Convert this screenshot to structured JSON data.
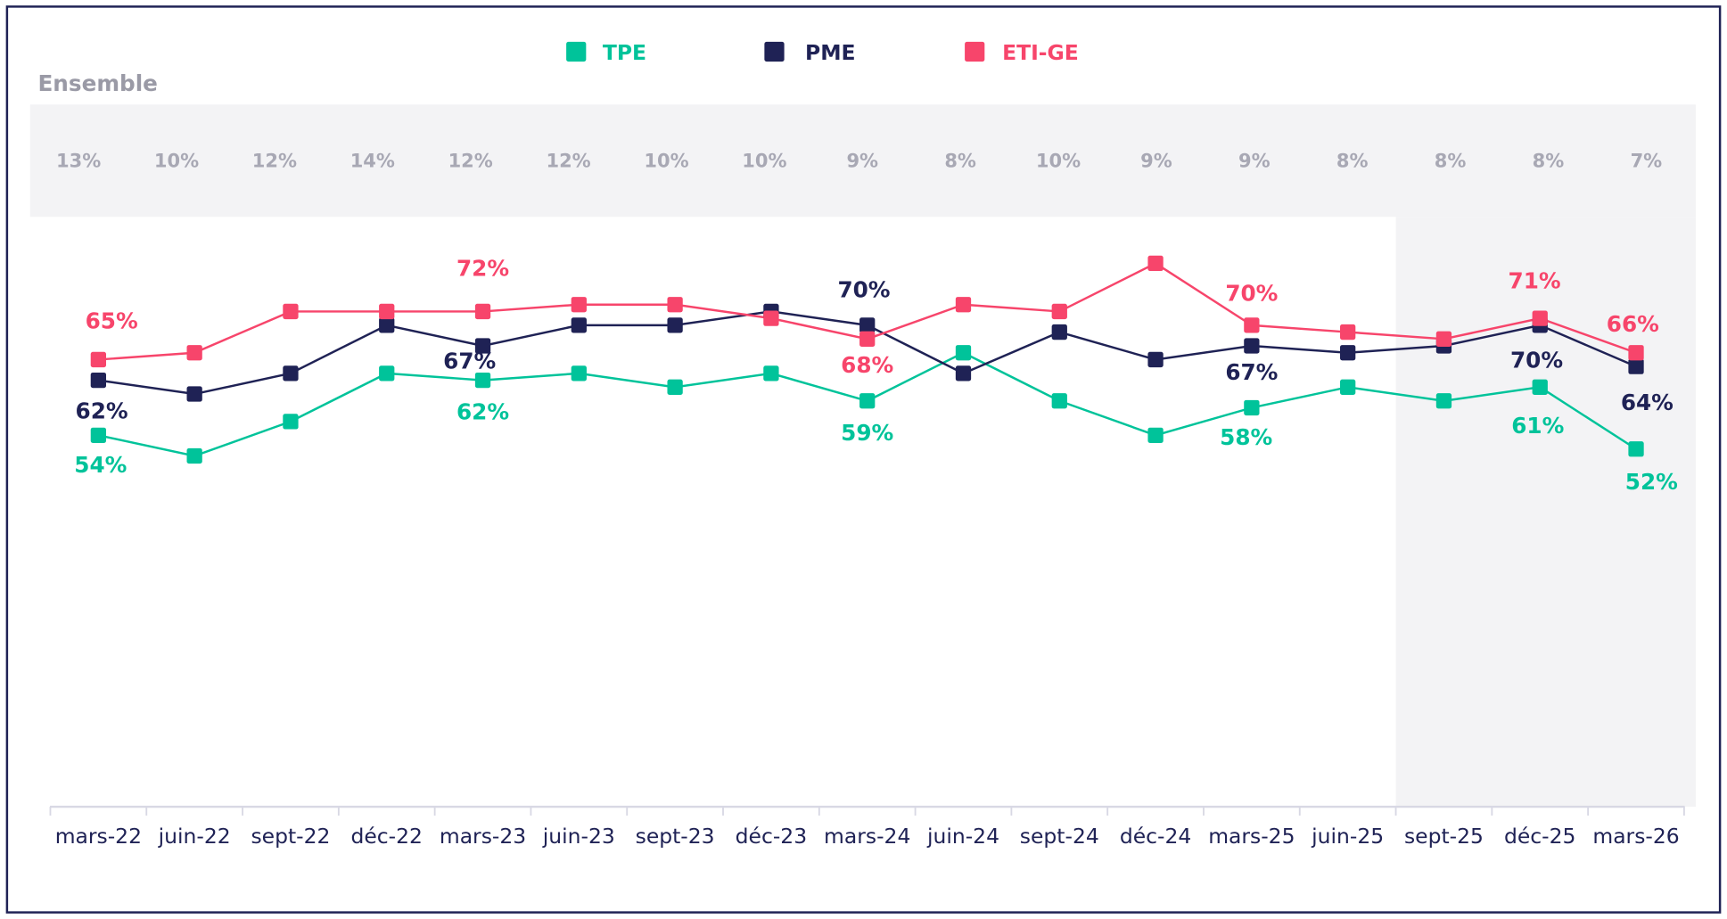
{
  "chart_data": {
    "type": "line",
    "categories": [
      "mars-22",
      "juin-22",
      "sept-22",
      "déc-22",
      "mars-23",
      "juin-23",
      "sept-23",
      "déc-23",
      "mars-24",
      "juin-24",
      "sept-24",
      "déc-24",
      "mars-25",
      "juin-25",
      "sept-25",
      "déc-25",
      "mars-26"
    ],
    "ylim": [
      0,
      100
    ],
    "series": [
      {
        "name": "TPE",
        "color": "#00c39a",
        "values": [
          54,
          51,
          56,
          63,
          62,
          63,
          61,
          63,
          59,
          66,
          59,
          54,
          58,
          61,
          59,
          61,
          52
        ],
        "value_labels": [
          "54%",
          null,
          null,
          null,
          "62%",
          null,
          null,
          null,
          "59%",
          null,
          null,
          null,
          "58%",
          null,
          null,
          "61%",
          "52%"
        ]
      },
      {
        "name": "PME",
        "color": "#1f2255",
        "values": [
          62,
          60,
          63,
          70,
          67,
          70,
          70,
          72,
          70,
          63,
          69,
          65,
          67,
          66,
          67,
          70,
          64
        ],
        "value_labels": [
          "62%",
          null,
          null,
          null,
          "67%",
          null,
          null,
          null,
          "70%",
          null,
          null,
          null,
          "67%",
          null,
          null,
          "70%",
          "64%"
        ]
      },
      {
        "name": "ETI-GE",
        "color": "#f7456b",
        "values": [
          65,
          66,
          72,
          72,
          72,
          73,
          73,
          71,
          68,
          73,
          72,
          79,
          70,
          69,
          68,
          71,
          66
        ],
        "value_labels": [
          "65%",
          null,
          null,
          null,
          "72%",
          null,
          null,
          null,
          "68%",
          null,
          null,
          null,
          "70%",
          null,
          null,
          "71%",
          "66%"
        ]
      }
    ],
    "band": {
      "title": "Ensemble",
      "values": [
        13,
        10,
        12,
        14,
        12,
        12,
        10,
        10,
        9,
        8,
        10,
        9,
        9,
        8,
        8,
        8,
        7
      ],
      "value_labels": [
        "13%",
        "10%",
        "12%",
        "14%",
        "12%",
        "12%",
        "10%",
        "10%",
        "9%",
        "8%",
        "10%",
        "9%",
        "9%",
        "8%",
        "8%",
        "8%",
        "7%"
      ]
    }
  }
}
